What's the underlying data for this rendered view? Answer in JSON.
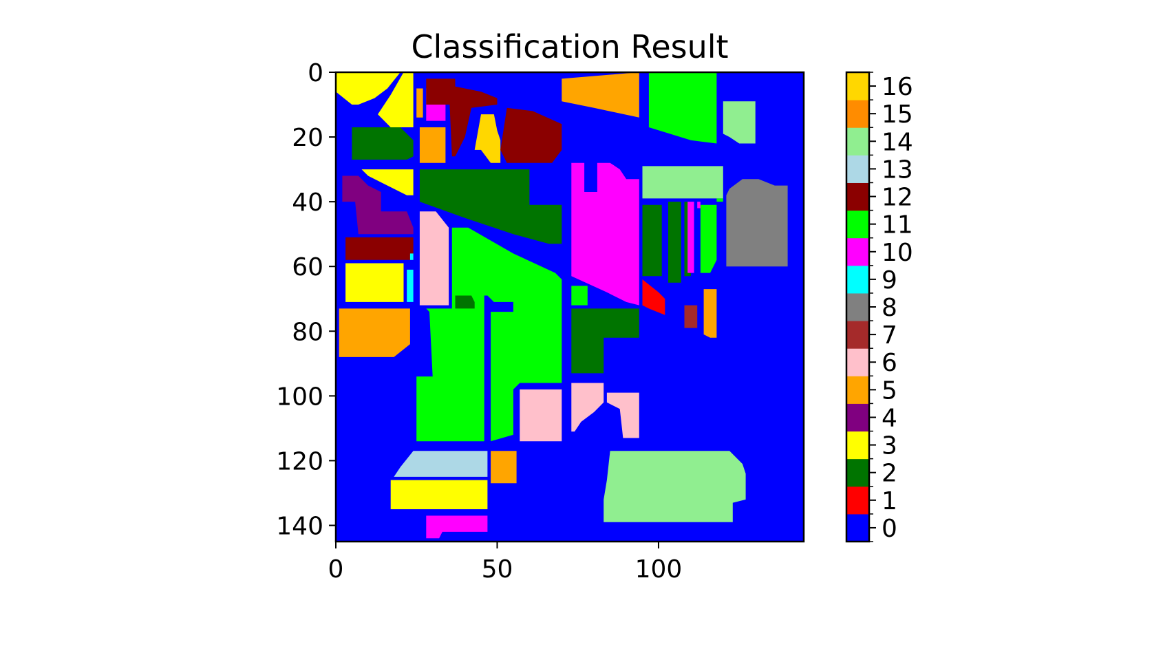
{
  "chart_data": {
    "type": "heatmap",
    "title": "Classification Result",
    "xlabel": "",
    "ylabel": "",
    "grid": false,
    "xlim": [
      0,
      145
    ],
    "ylim": [
      145,
      0
    ],
    "x_ticks": [
      0,
      50,
      100
    ],
    "y_ticks": [
      0,
      20,
      40,
      60,
      80,
      100,
      120,
      140
    ],
    "colorbar": {
      "position": "right",
      "ticks": [
        0,
        1,
        2,
        3,
        4,
        5,
        6,
        7,
        8,
        9,
        10,
        11,
        12,
        13,
        14,
        15,
        16
      ],
      "colors": [
        "#0000ff",
        "#ff0000",
        "#007400",
        "#ffff00",
        "#800080",
        "#ffa500",
        "#ffc0cb",
        "#a52a2a",
        "#808080",
        "#00ffff",
        "#ff00ff",
        "#00ff00",
        "#8b0000",
        "#add8e6",
        "#90ee90",
        "#ff8c00",
        "#ffd700"
      ]
    },
    "background_class": 0,
    "regions": [
      {
        "cls": 3,
        "pts": [
          [
            0,
            0
          ],
          [
            20,
            0
          ],
          [
            16,
            5
          ],
          [
            12,
            8
          ],
          [
            7,
            10
          ],
          [
            5,
            10
          ],
          [
            0,
            6
          ]
        ]
      },
      {
        "cls": 3,
        "pts": [
          [
            21,
            0
          ],
          [
            24,
            0
          ],
          [
            24,
            17
          ],
          [
            17,
            17
          ],
          [
            13,
            13
          ],
          [
            17,
            7
          ]
        ]
      },
      {
        "cls": 5,
        "pts": [
          [
            25,
            5
          ],
          [
            27,
            5
          ],
          [
            27,
            14
          ],
          [
            25,
            14
          ]
        ]
      },
      {
        "cls": 10,
        "pts": [
          [
            28,
            5
          ],
          [
            34,
            5
          ],
          [
            34,
            15
          ],
          [
            28,
            15
          ]
        ]
      },
      {
        "cls": 12,
        "pts": [
          [
            28,
            2
          ],
          [
            37,
            2
          ],
          [
            37,
            10
          ],
          [
            28,
            10
          ]
        ]
      },
      {
        "cls": 12,
        "pts": [
          [
            35,
            4
          ],
          [
            45,
            6
          ],
          [
            50,
            8
          ],
          [
            50,
            10
          ],
          [
            42,
            11
          ],
          [
            40,
            20
          ],
          [
            37,
            26
          ],
          [
            36,
            26
          ]
        ]
      },
      {
        "cls": 16,
        "pts": [
          [
            45,
            13
          ],
          [
            49,
            13
          ],
          [
            50,
            18
          ],
          [
            51,
            21
          ],
          [
            51,
            28
          ],
          [
            48,
            28
          ],
          [
            45,
            24
          ],
          [
            43,
            24
          ]
        ]
      },
      {
        "cls": 12,
        "pts": [
          [
            53,
            11
          ],
          [
            61,
            12
          ],
          [
            70,
            16
          ],
          [
            70,
            24
          ],
          [
            67,
            28
          ],
          [
            53,
            28
          ],
          [
            51,
            24
          ]
        ]
      },
      {
        "cls": 5,
        "pts": [
          [
            70,
            2
          ],
          [
            94,
            0
          ],
          [
            94,
            14
          ],
          [
            80,
            11
          ],
          [
            70,
            9
          ]
        ]
      },
      {
        "cls": 11,
        "pts": [
          [
            97,
            0
          ],
          [
            118,
            0
          ],
          [
            118,
            22
          ],
          [
            110,
            21
          ],
          [
            97,
            17
          ]
        ]
      },
      {
        "cls": 14,
        "pts": [
          [
            120,
            9
          ],
          [
            130,
            9
          ],
          [
            130,
            22
          ],
          [
            125,
            22
          ],
          [
            122,
            20
          ],
          [
            120,
            19
          ]
        ]
      },
      {
        "cls": 2,
        "pts": [
          [
            5,
            17
          ],
          [
            20,
            17
          ],
          [
            24,
            21
          ],
          [
            24,
            26
          ],
          [
            22,
            27
          ],
          [
            5,
            27
          ]
        ]
      },
      {
        "cls": 5,
        "pts": [
          [
            26,
            17
          ],
          [
            34,
            17
          ],
          [
            34,
            28
          ],
          [
            26,
            28
          ]
        ]
      },
      {
        "cls": 3,
        "pts": [
          [
            8,
            30
          ],
          [
            24,
            30
          ],
          [
            24,
            38
          ],
          [
            22,
            38
          ],
          [
            16,
            35
          ],
          [
            10,
            32
          ]
        ]
      },
      {
        "cls": 2,
        "pts": [
          [
            26,
            30
          ],
          [
            60,
            30
          ],
          [
            60,
            41
          ],
          [
            70,
            41
          ],
          [
            70,
            53
          ],
          [
            66,
            53
          ],
          [
            55,
            50
          ],
          [
            40,
            45
          ],
          [
            26,
            40
          ]
        ]
      },
      {
        "cls": 4,
        "pts": [
          [
            2,
            32
          ],
          [
            7,
            32
          ],
          [
            10,
            35
          ],
          [
            14,
            37
          ],
          [
            14,
            43
          ],
          [
            22,
            43
          ],
          [
            24,
            48
          ],
          [
            24,
            50
          ],
          [
            7,
            50
          ],
          [
            6,
            40
          ],
          [
            2,
            40
          ]
        ]
      },
      {
        "cls": 12,
        "pts": [
          [
            3,
            51
          ],
          [
            24,
            51
          ],
          [
            24,
            58
          ],
          [
            3,
            58
          ]
        ]
      },
      {
        "cls": 9,
        "pts": [
          [
            23,
            56
          ],
          [
            24,
            56
          ],
          [
            24,
            58
          ],
          [
            23,
            58
          ]
        ]
      },
      {
        "cls": 3,
        "pts": [
          [
            3,
            59
          ],
          [
            21,
            59
          ],
          [
            21,
            71
          ],
          [
            3,
            71
          ]
        ]
      },
      {
        "cls": 9,
        "pts": [
          [
            22,
            61
          ],
          [
            24,
            61
          ],
          [
            24,
            71
          ],
          [
            22,
            71
          ]
        ]
      },
      {
        "cls": 6,
        "pts": [
          [
            26,
            43
          ],
          [
            31,
            43
          ],
          [
            35,
            48
          ],
          [
            35,
            72
          ],
          [
            26,
            72
          ]
        ]
      },
      {
        "cls": 5,
        "pts": [
          [
            1,
            73
          ],
          [
            23,
            73
          ],
          [
            23,
            84
          ],
          [
            18,
            88
          ],
          [
            1,
            88
          ]
        ]
      },
      {
        "cls": 11,
        "pts": [
          [
            36,
            48
          ],
          [
            41,
            48
          ],
          [
            55,
            56
          ],
          [
            68,
            62
          ],
          [
            70,
            64
          ],
          [
            70,
            96
          ],
          [
            57,
            96
          ],
          [
            55,
            98
          ],
          [
            55,
            112
          ],
          [
            48,
            114
          ],
          [
            48,
            74
          ],
          [
            55,
            74
          ],
          [
            55,
            71
          ],
          [
            49,
            71
          ],
          [
            47,
            69
          ],
          [
            46,
            69
          ],
          [
            46,
            114
          ],
          [
            25,
            114
          ],
          [
            25,
            94
          ],
          [
            30,
            94
          ],
          [
            29,
            74
          ],
          [
            28,
            73
          ],
          [
            36,
            73
          ]
        ]
      },
      {
        "cls": 2,
        "pts": [
          [
            37,
            69
          ],
          [
            42,
            69
          ],
          [
            43,
            71
          ],
          [
            43,
            73
          ],
          [
            37,
            73
          ]
        ]
      },
      {
        "cls": 11,
        "pts": [
          [
            73,
            66
          ],
          [
            78,
            66
          ],
          [
            78,
            72
          ],
          [
            73,
            72
          ]
        ]
      },
      {
        "cls": 10,
        "pts": [
          [
            73,
            28
          ],
          [
            77,
            28
          ],
          [
            77,
            37
          ],
          [
            81,
            37
          ],
          [
            81,
            28
          ],
          [
            85,
            28
          ],
          [
            88,
            30
          ],
          [
            90,
            33
          ],
          [
            94,
            33
          ],
          [
            94,
            72
          ],
          [
            90,
            71
          ],
          [
            84,
            68
          ],
          [
            73,
            63
          ]
        ]
      },
      {
        "cls": 14,
        "pts": [
          [
            95,
            29
          ],
          [
            120,
            29
          ],
          [
            120,
            39
          ],
          [
            95,
            39
          ]
        ]
      },
      {
        "cls": 2,
        "pts": [
          [
            95,
            41
          ],
          [
            101,
            41
          ],
          [
            101,
            63
          ],
          [
            95,
            63
          ]
        ]
      },
      {
        "cls": 2,
        "pts": [
          [
            103,
            40
          ],
          [
            107,
            40
          ],
          [
            107,
            65
          ],
          [
            103,
            65
          ]
        ]
      },
      {
        "cls": 2,
        "pts": [
          [
            108,
            40
          ],
          [
            110,
            40
          ],
          [
            110,
            63
          ],
          [
            108,
            63
          ]
        ]
      },
      {
        "cls": 10,
        "pts": [
          [
            109,
            40
          ],
          [
            111,
            40
          ],
          [
            111,
            62
          ],
          [
            109,
            62
          ]
        ]
      },
      {
        "cls": 10,
        "pts": [
          [
            112,
            40
          ],
          [
            113,
            40
          ],
          [
            113,
            42
          ],
          [
            112,
            42
          ]
        ]
      },
      {
        "cls": 11,
        "pts": [
          [
            113,
            41
          ],
          [
            118,
            41
          ],
          [
            118,
            58
          ],
          [
            116,
            62
          ],
          [
            113,
            62
          ]
        ]
      },
      {
        "cls": 11,
        "pts": [
          [
            118,
            39
          ],
          [
            120,
            39
          ],
          [
            120,
            40
          ],
          [
            118,
            40
          ]
        ]
      },
      {
        "cls": 8,
        "pts": [
          [
            122,
            36
          ],
          [
            126,
            33
          ],
          [
            131,
            33
          ],
          [
            136,
            35
          ],
          [
            140,
            35
          ],
          [
            140,
            60
          ],
          [
            121,
            60
          ],
          [
            121,
            38
          ]
        ]
      },
      {
        "cls": 1,
        "pts": [
          [
            95,
            64
          ],
          [
            100,
            68
          ],
          [
            102,
            70
          ],
          [
            102,
            75
          ],
          [
            97,
            73
          ],
          [
            95,
            72
          ]
        ]
      },
      {
        "cls": 7,
        "pts": [
          [
            108,
            72
          ],
          [
            112,
            72
          ],
          [
            112,
            79
          ],
          [
            108,
            79
          ]
        ]
      },
      {
        "cls": 5,
        "pts": [
          [
            114,
            67
          ],
          [
            118,
            67
          ],
          [
            118,
            82
          ],
          [
            116,
            82
          ],
          [
            114,
            81
          ]
        ]
      },
      {
        "cls": 2,
        "pts": [
          [
            73,
            73
          ],
          [
            94,
            73
          ],
          [
            94,
            82
          ],
          [
            83,
            82
          ],
          [
            83,
            93
          ],
          [
            73,
            93
          ]
        ]
      },
      {
        "cls": 6,
        "pts": [
          [
            57,
            98
          ],
          [
            70,
            98
          ],
          [
            70,
            114
          ],
          [
            57,
            114
          ]
        ]
      },
      {
        "cls": 6,
        "pts": [
          [
            73,
            96
          ],
          [
            83,
            96
          ],
          [
            83,
            102
          ],
          [
            80,
            105
          ],
          [
            76,
            108
          ],
          [
            74,
            111
          ],
          [
            73,
            111
          ]
        ]
      },
      {
        "cls": 6,
        "pts": [
          [
            84,
            99
          ],
          [
            94,
            99
          ],
          [
            94,
            113
          ],
          [
            89,
            113
          ],
          [
            88,
            104
          ],
          [
            84,
            102
          ]
        ]
      },
      {
        "cls": 13,
        "pts": [
          [
            24,
            117
          ],
          [
            47,
            117
          ],
          [
            47,
            125
          ],
          [
            18,
            125
          ],
          [
            20,
            122
          ]
        ]
      },
      {
        "cls": 3,
        "pts": [
          [
            17,
            126
          ],
          [
            47,
            126
          ],
          [
            47,
            135
          ],
          [
            17,
            135
          ]
        ]
      },
      {
        "cls": 10,
        "pts": [
          [
            28,
            137
          ],
          [
            47,
            137
          ],
          [
            47,
            142
          ],
          [
            33,
            142
          ],
          [
            32,
            144
          ],
          [
            28,
            144
          ]
        ]
      },
      {
        "cls": 5,
        "pts": [
          [
            48,
            117
          ],
          [
            56,
            117
          ],
          [
            56,
            127
          ],
          [
            48,
            127
          ]
        ]
      },
      {
        "cls": 14,
        "pts": [
          [
            85,
            117
          ],
          [
            122,
            117
          ],
          [
            126,
            121
          ],
          [
            127,
            124
          ],
          [
            127,
            132
          ],
          [
            123,
            133
          ],
          [
            123,
            139
          ],
          [
            83,
            139
          ],
          [
            83,
            132
          ],
          [
            84,
            126
          ]
        ]
      }
    ]
  }
}
